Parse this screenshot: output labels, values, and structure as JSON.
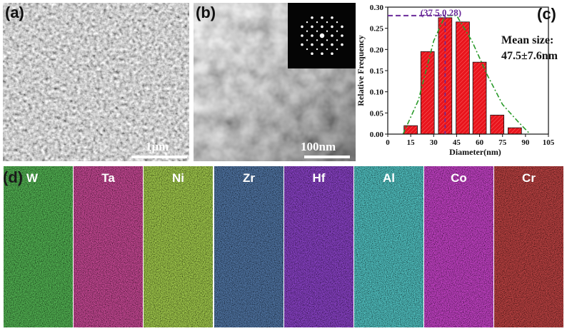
{
  "panels": {
    "a": {
      "label": "(a)",
      "scalebar": "1μm"
    },
    "b": {
      "label": "(b)",
      "scalebar": "100nm"
    },
    "c": {
      "label": "(c)",
      "mean_title": "Mean size:",
      "mean_value": "47.5±7.6nm",
      "peak_annotation": "(37.5,0.28)"
    },
    "d": {
      "label": "(d)"
    }
  },
  "eds_maps": [
    {
      "element": "W",
      "color": "#1fa01f"
    },
    {
      "element": "Ta",
      "color": "#c8186a"
    },
    {
      "element": "Ni",
      "color": "#7fd11a"
    },
    {
      "element": "Zr",
      "color": "#1d3f82"
    },
    {
      "element": "Hf",
      "color": "#5a14c8"
    },
    {
      "element": "Al",
      "color": "#1ebfbf"
    },
    {
      "element": "Co",
      "color": "#c314c8"
    },
    {
      "element": "Cr",
      "color": "#b01414"
    }
  ],
  "chart_data": {
    "type": "bar",
    "xlabel": "Diameter(nm)",
    "ylabel": "Relative Frequency",
    "xlim": [
      0,
      105
    ],
    "ylim": [
      0,
      0.3
    ],
    "xticks": [
      0,
      15,
      30,
      45,
      60,
      75,
      90,
      105
    ],
    "yticks": [
      0.0,
      0.05,
      0.1,
      0.15,
      0.2,
      0.25,
      0.3
    ],
    "bin_width": 10,
    "x": [
      15,
      26,
      37.5,
      49,
      60,
      71.5,
      83,
      94
    ],
    "values": [
      0.02,
      0.195,
      0.275,
      0.265,
      0.17,
      0.045,
      0.015,
      0.0
    ],
    "fit_curve": {
      "x": [
        10,
        20,
        30,
        37.5,
        45,
        55,
        65,
        75,
        85,
        93
      ],
      "y": [
        0.0,
        0.08,
        0.22,
        0.28,
        0.28,
        0.22,
        0.14,
        0.07,
        0.03,
        0.0
      ]
    },
    "peak": {
      "x": 37.5,
      "y": 0.28
    },
    "bar_color": "#e8141c",
    "fit_color": "#2a9a2a",
    "marker_color": "#6a2a9a"
  }
}
